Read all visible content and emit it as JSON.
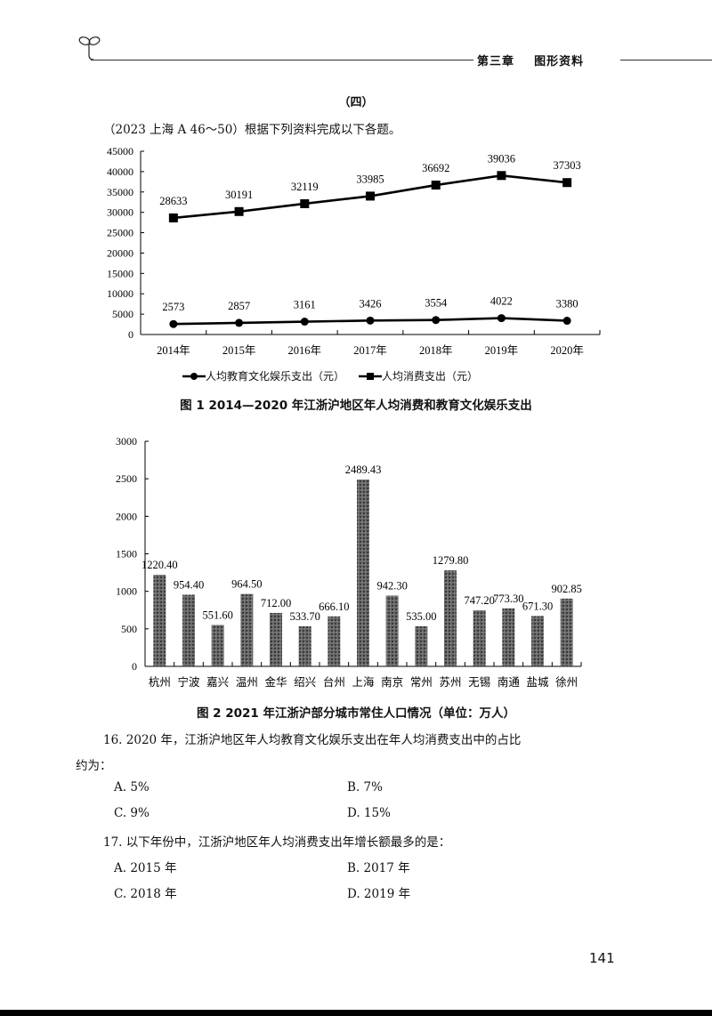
{
  "header": {
    "chapter": "第三章    图形资料",
    "logo_icon": "sprout-icon"
  },
  "section_title": "（四）",
  "intro": "（2023 上海 A  46～50）根据下列资料完成以下各题。",
  "figure1": {
    "caption": "图 1   2014—2020 年江浙沪地区年人均消费和教育文化娱乐支出",
    "legend": [
      {
        "label": "人均教育文化娱乐支出（元）",
        "marker": "circle"
      },
      {
        "label": "人均消费支出（元）",
        "marker": "square"
      }
    ]
  },
  "figure2": {
    "caption": "图 2   2021 年江浙沪部分城市常住人口情况（单位：万人）"
  },
  "chart_data": [
    {
      "type": "line",
      "title": "2014—2020 年江浙沪地区年人均消费和教育文化娱乐支出",
      "x": [
        "2014年",
        "2015年",
        "2016年",
        "2017年",
        "2018年",
        "2019年",
        "2020年"
      ],
      "series": [
        {
          "name": "人均教育文化娱乐支出（元）",
          "marker": "circle",
          "values": [
            2573,
            2857,
            3161,
            3426,
            3554,
            4022,
            3380
          ]
        },
        {
          "name": "人均消费支出（元）",
          "marker": "square",
          "values": [
            28633,
            30191,
            32119,
            33985,
            36692,
            39036,
            37303
          ]
        }
      ],
      "xlabel": "",
      "ylabel": "",
      "ylim": [
        0,
        45000
      ],
      "yticks": [
        0,
        5000,
        10000,
        15000,
        20000,
        25000,
        30000,
        35000,
        40000,
        45000
      ],
      "grid": false,
      "legend_position": "bottom"
    },
    {
      "type": "bar",
      "title": "2021 年江浙沪部分城市常住人口情况（单位：万人）",
      "categories": [
        "杭州",
        "宁波",
        "嘉兴",
        "温州",
        "金华",
        "绍兴",
        "台州",
        "上海",
        "南京",
        "常州",
        "苏州",
        "无锡",
        "南通",
        "盐城",
        "徐州"
      ],
      "values": [
        1220.4,
        954.4,
        551.6,
        964.5,
        712.0,
        533.7,
        666.1,
        2489.43,
        942.3,
        535.0,
        1279.8,
        747.2,
        773.3,
        671.3,
        902.85
      ],
      "labels": [
        "1220.40",
        "954.40",
        "551.60",
        "964.50",
        "712.00",
        "533.70",
        "666.10",
        "2489.43",
        "942.30",
        "535.00",
        "1279.80",
        "747.20",
        "773.30",
        "671.30",
        "902.85"
      ],
      "xlabel": "",
      "ylabel": "",
      "ylim": [
        0,
        3000
      ],
      "yticks": [
        0,
        500,
        1000,
        1500,
        2000,
        2500,
        3000
      ],
      "grid": false
    }
  ],
  "questions": [
    {
      "stem": "16. 2020 年，江浙沪地区年人均教育文化娱乐支出在年人均消费支出中的占比",
      "stem_cont": "约为：",
      "options": [
        "A. 5%",
        "B. 7%",
        "C. 9%",
        "D. 15%"
      ]
    },
    {
      "stem": "17. 以下年份中，江浙沪地区年人均消费支出年增长额最多的是：",
      "options": [
        "A. 2015 年",
        "B. 2017 年",
        "C. 2018 年",
        "D. 2019 年"
      ]
    }
  ],
  "page_number": "141"
}
